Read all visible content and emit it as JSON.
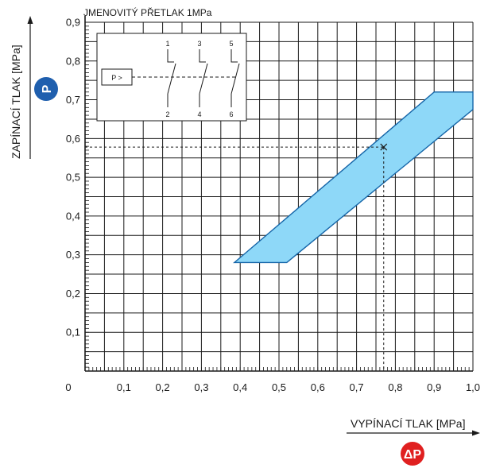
{
  "chart_data": {
    "type": "area",
    "title": "JMENOVITÝ PŘETLAK 1MPa",
    "xlabel": "VYPÍNACÍ TLAK  [MPa]",
    "ylabel": "ZAPÍNACÍ TLAK [MPa]",
    "x_symbol": "ΔP",
    "y_symbol": "P",
    "xlim": [
      0,
      1.0
    ],
    "ylim": [
      0,
      0.9
    ],
    "x_ticks": [
      {
        "value": 0.1,
        "label": "0,1"
      },
      {
        "value": 0.2,
        "label": "0,2"
      },
      {
        "value": 0.3,
        "label": "0,3"
      },
      {
        "value": 0.4,
        "label": "0,4"
      },
      {
        "value": 0.5,
        "label": "0,5"
      },
      {
        "value": 0.6,
        "label": "0,6"
      },
      {
        "value": 0.7,
        "label": "0,7"
      },
      {
        "value": 0.8,
        "label": "0,8"
      },
      {
        "value": 0.9,
        "label": "0,9"
      },
      {
        "value": 1.0,
        "label": "1,0"
      }
    ],
    "y_ticks": [
      {
        "value": 0.1,
        "label": "0,1"
      },
      {
        "value": 0.2,
        "label": "0,2"
      },
      {
        "value": 0.3,
        "label": "0,3"
      },
      {
        "value": 0.4,
        "label": "0,4"
      },
      {
        "value": 0.5,
        "label": "0,5"
      },
      {
        "value": 0.6,
        "label": "0,6"
      },
      {
        "value": 0.7,
        "label": "0,7"
      },
      {
        "value": 0.8,
        "label": "0,8"
      },
      {
        "value": 0.9,
        "label": "0,9"
      }
    ],
    "origin_label": "0",
    "grid": true,
    "band_color": "#8ed8f8",
    "band_stroke": "#1565a8",
    "operating_band": [
      {
        "x": 0.385,
        "y": 0.28
      },
      {
        "x": 0.52,
        "y": 0.28
      },
      {
        "x": 1.0,
        "y": 0.675
      },
      {
        "x": 1.0,
        "y": 0.72
      },
      {
        "x": 0.9,
        "y": 0.72
      }
    ],
    "example_point": {
      "x": 0.77,
      "y": 0.578
    }
  },
  "inset": {
    "box_label": "P >",
    "terminals_top": [
      "1",
      "3",
      "5"
    ],
    "terminals_bottom": [
      "2",
      "4",
      "6"
    ]
  },
  "badges": {
    "y_color": "#1f5fae",
    "x_color": "#e02020"
  }
}
